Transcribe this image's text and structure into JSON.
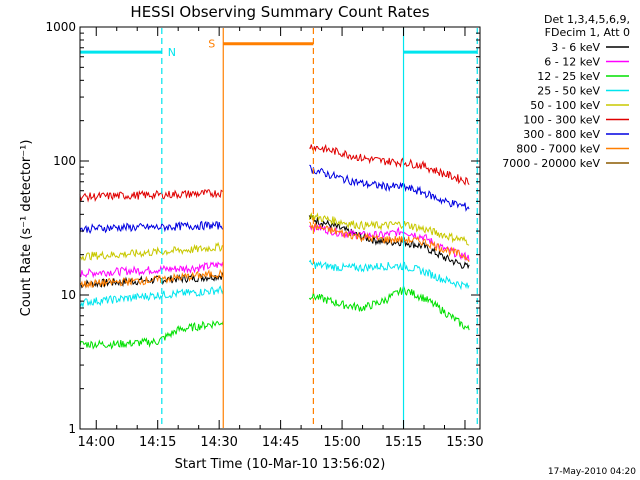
{
  "chart_data": {
    "type": "line",
    "title": "HESSI Observing Summary Count Rates",
    "xlabel": "Start Time (10-Mar-10 13:56:02)",
    "ylabel": "Count Rate (s⁻¹ detector⁻¹)",
    "yscale": "log",
    "ylim": [
      1,
      1000
    ],
    "xlim": [
      "13:56:02",
      "15:33:40"
    ],
    "x_ticks": [
      "14:00",
      "14:15",
      "14:30",
      "14:45",
      "15:00",
      "15:15",
      "15:30"
    ],
    "y_ticks": [
      "1",
      "10",
      "100",
      "1000"
    ],
    "grid": false,
    "legend_placement": "right",
    "legend_header": [
      "Det 1,3,4,5,6,9,",
      "FDecim 1, Att 0"
    ],
    "footer": "17-May-2010 04:20",
    "series": [
      {
        "name": "3 - 6 keV",
        "color": "#000000",
        "segments": [
          {
            "x": [
              "13:56",
              "14:05",
              "14:15",
              "14:25",
              "14:31"
            ],
            "y": [
              12,
              12.5,
              13,
              13.5,
              14
            ]
          },
          {
            "x": [
              "14:52",
              "15:00",
              "15:05",
              "15:10",
              "15:15",
              "15:20",
              "15:25",
              "15:31"
            ],
            "y": [
              38,
              31,
              27,
              25,
              25,
              23,
              19,
              16
            ]
          }
        ]
      },
      {
        "name": "6 - 12 keV",
        "color": "#ff00ff",
        "segments": [
          {
            "x": [
              "13:56",
              "14:05",
              "14:15",
              "14:25",
              "14:31"
            ],
            "y": [
              14.5,
              15,
              15.5,
              16,
              17
            ]
          },
          {
            "x": [
              "14:52",
              "15:00",
              "15:05",
              "15:10",
              "15:15",
              "15:20",
              "15:25",
              "15:31"
            ],
            "y": [
              33,
              29,
              28,
              28,
              30,
              27,
              22,
              19
            ]
          }
        ]
      },
      {
        "name": "12 - 25 keV",
        "color": "#00e000",
        "segments": [
          {
            "x": [
              "13:56",
              "14:05",
              "14:15",
              "14:20",
              "14:31"
            ],
            "y": [
              4.3,
              4.3,
              4.5,
              5.5,
              6.3
            ]
          },
          {
            "x": [
              "14:52",
              "15:00",
              "15:05",
              "15:10",
              "15:15",
              "15:20",
              "15:25",
              "15:31"
            ],
            "y": [
              10,
              8.5,
              8,
              9,
              11,
              9.5,
              7.5,
              5.5
            ]
          }
        ]
      },
      {
        "name": "25 - 50 keV",
        "color": "#00e5ee",
        "segments": [
          {
            "x": [
              "13:56",
              "14:05",
              "14:15",
              "14:25",
              "14:31"
            ],
            "y": [
              8.8,
              9.3,
              10,
              10.5,
              11
            ]
          },
          {
            "x": [
              "14:52",
              "15:00",
              "15:05",
              "15:10",
              "15:15",
              "15:20",
              "15:25",
              "15:31"
            ],
            "y": [
              17,
              16,
              16,
              16.5,
              16.5,
              15,
              13,
              11.5
            ]
          }
        ]
      },
      {
        "name": "50 - 100 keV",
        "color": "#c8c800",
        "segments": [
          {
            "x": [
              "13:56",
              "14:05",
              "14:15",
              "14:25",
              "14:31"
            ],
            "y": [
              19.5,
              20,
              21,
              22,
              23
            ]
          },
          {
            "x": [
              "14:52",
              "15:00",
              "15:05",
              "15:10",
              "15:15",
              "15:20",
              "15:25",
              "15:31"
            ],
            "y": [
              39,
              35,
              33,
              33,
              34,
              31,
              28,
              25
            ]
          }
        ]
      },
      {
        "name": "100 - 300 keV",
        "color": "#e00000",
        "segments": [
          {
            "x": [
              "13:56",
              "14:05",
              "14:15",
              "14:25",
              "14:31"
            ],
            "y": [
              54,
              55,
              56,
              57,
              58
            ]
          },
          {
            "x": [
              "14:52",
              "15:00",
              "15:05",
              "15:10",
              "15:15",
              "15:20",
              "15:25",
              "15:31"
            ],
            "y": [
              130,
              115,
              105,
              100,
              98,
              92,
              80,
              70
            ]
          }
        ]
      },
      {
        "name": "300 - 800 keV",
        "color": "#0000e0",
        "segments": [
          {
            "x": [
              "13:56",
              "14:05",
              "14:15",
              "14:25",
              "14:31"
            ],
            "y": [
              31,
              32,
              32,
              33,
              33
            ]
          },
          {
            "x": [
              "14:52",
              "15:00",
              "15:05",
              "15:10",
              "15:15",
              "15:20",
              "15:25",
              "15:31"
            ],
            "y": [
              88,
              74,
              68,
              65,
              64,
              58,
              50,
              45
            ]
          }
        ]
      },
      {
        "name": "800 - 7000 keV",
        "color": "#ff7f00",
        "segments": [
          {
            "x": [
              "13:56",
              "14:05",
              "14:15",
              "14:25",
              "14:31"
            ],
            "y": [
              12,
              12.5,
              13,
              14,
              14.5
            ]
          },
          {
            "x": [
              "14:52",
              "15:00",
              "15:05",
              "15:10",
              "15:15",
              "15:20",
              "15:25",
              "15:31"
            ],
            "y": [
              33,
              29,
              27,
              26,
              26,
              25,
              22,
              19
            ]
          }
        ]
      },
      {
        "name": "7000 - 20000 keV",
        "color": "#8b5a00",
        "segments": []
      }
    ],
    "annotations": [
      {
        "label": "N",
        "color": "#00e5ee",
        "type": "bar",
        "x": [
          "13:56",
          "14:16"
        ],
        "y": 650
      },
      {
        "label": "",
        "color": "#00e5ee",
        "type": "bar",
        "x": [
          "15:15",
          "15:33"
        ],
        "y": 650
      },
      {
        "label": "S",
        "color": "#ff7f00",
        "type": "bar",
        "x": [
          "14:31",
          "14:53"
        ],
        "y": 750
      },
      {
        "label": "",
        "color": "#00e5ee",
        "type": "vline",
        "style": "solid",
        "x": "15:15"
      },
      {
        "label": "",
        "color": "#00e5ee",
        "type": "vline",
        "style": "dashed",
        "x": "14:16"
      },
      {
        "label": "",
        "color": "#00e5ee",
        "type": "vline",
        "style": "dashed",
        "x": "15:33"
      },
      {
        "label": "",
        "color": "#ff7f00",
        "type": "vline",
        "style": "solid",
        "x": "14:31"
      },
      {
        "label": "",
        "color": "#ff7f00",
        "type": "vline",
        "style": "dashed",
        "x": "14:53"
      }
    ]
  }
}
